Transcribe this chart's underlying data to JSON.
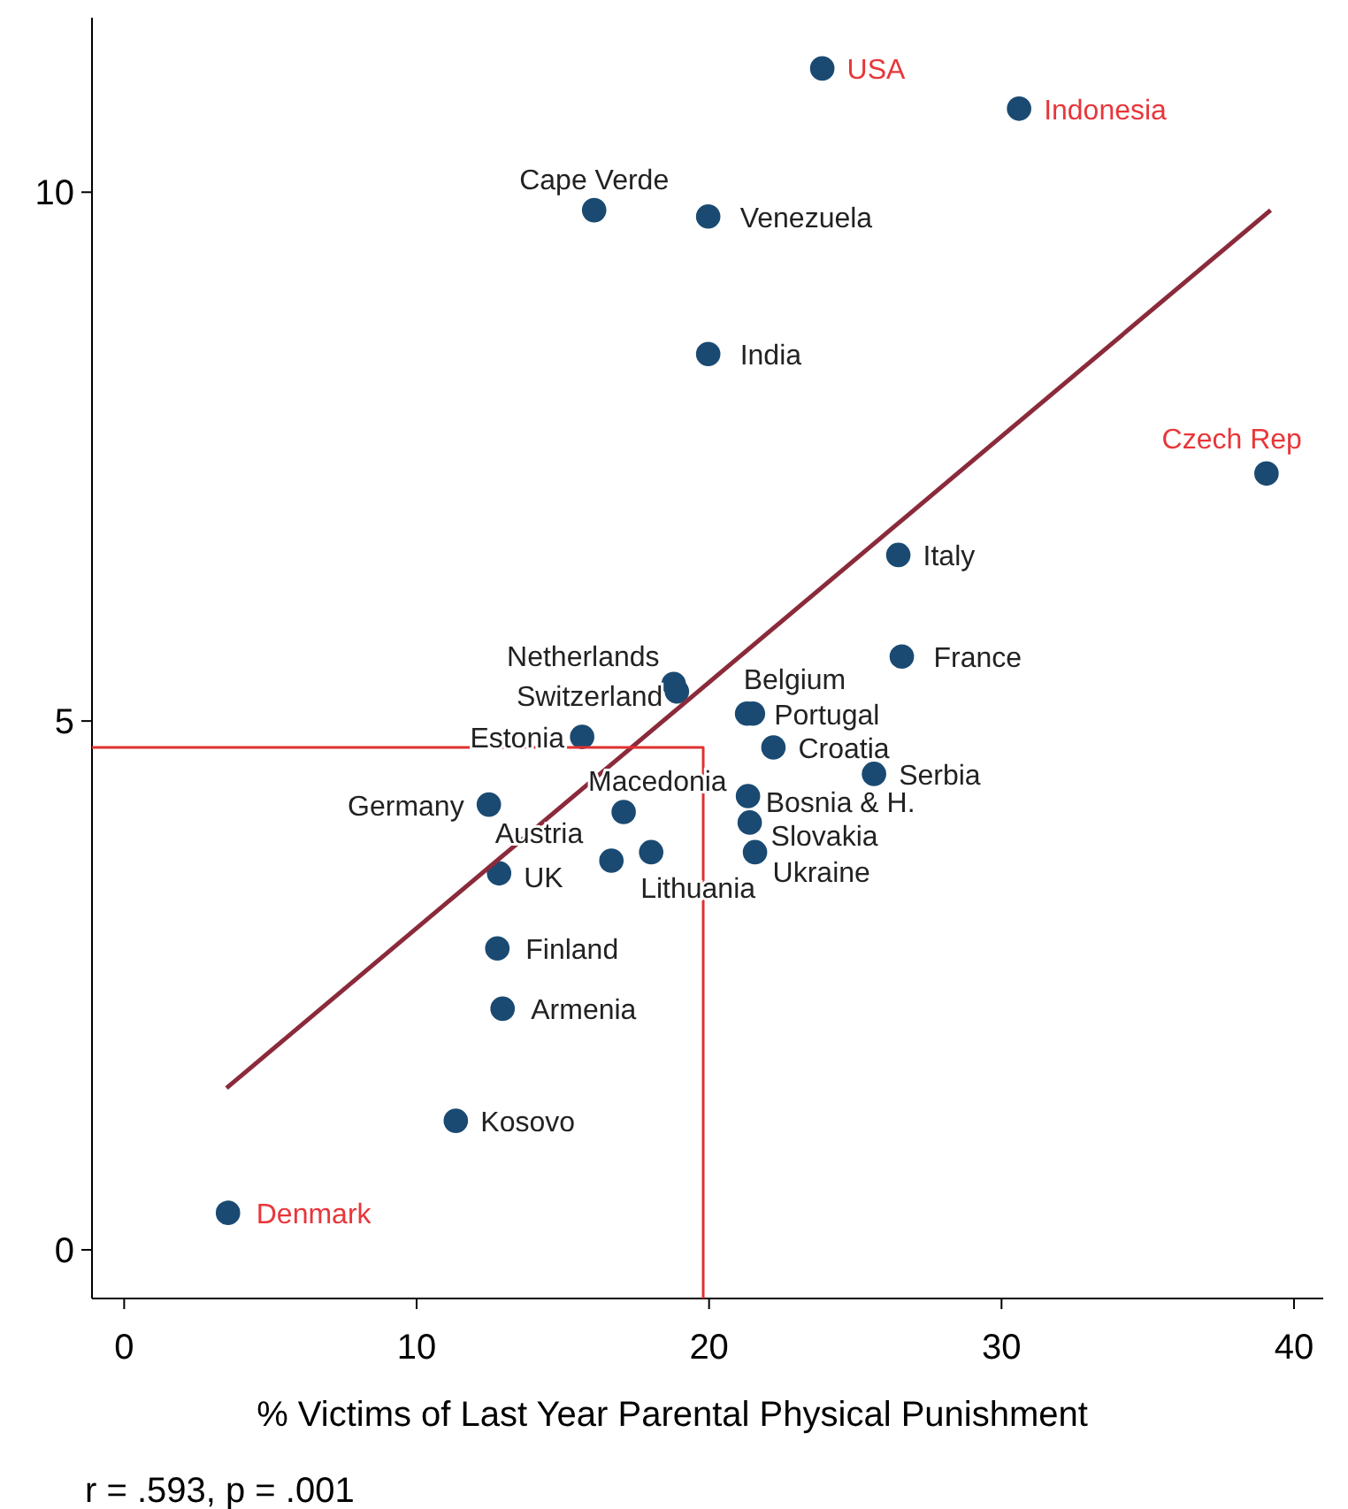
{
  "chart_data": {
    "type": "scatter",
    "xlabel": "% Victims of Last Year Parental Physical Punishment",
    "xlim": [
      -1.1,
      41
    ],
    "ylim": [
      -0.46,
      11.65
    ],
    "xticks": [
      0,
      10,
      20,
      30,
      40
    ],
    "yticks": [
      0,
      5,
      10
    ],
    "grid": false,
    "marker": "circle",
    "series": [
      {
        "color": "#1a4a72",
        "x": [
          16.07,
          19.97,
          19.97,
          26.47,
          26.59,
          18.79,
          18.9,
          21.3,
          21.5,
          15.66,
          22.2,
          25.64,
          17.08,
          21.33,
          12.47,
          21.39,
          16.66,
          18.02,
          21.57,
          12.82,
          12.76,
          12.94,
          11.34
        ],
        "values": [
          9.83,
          9.77,
          8.47,
          6.57,
          5.61,
          5.35,
          5.28,
          5.07,
          5.07,
          4.85,
          4.75,
          4.5,
          4.14,
          4.29,
          4.21,
          4.04,
          3.68,
          3.76,
          3.76,
          3.56,
          2.85,
          2.28,
          1.22
        ]
      },
      {
        "color": "#1a4a72",
        "x": [
          23.87,
          30.6,
          39.06,
          3.55
        ],
        "values": [
          11.17,
          10.79,
          7.34,
          0.35
        ]
      },
      {
        "type": "line",
        "marker": "none",
        "color": "#8b2a3a",
        "x": [
          3.5,
          39.2
        ],
        "values": [
          1.53,
          9.83
        ]
      },
      {
        "type": "line",
        "marker": "none",
        "color": "#e03030",
        "x": [
          -1.1,
          19.8,
          19.8
        ],
        "values": [
          4.75,
          4.75,
          -0.46
        ]
      }
    ],
    "annotations": [
      {
        "text": "Cape Verde",
        "x": 16.07,
        "y": 9.83
      },
      {
        "text": "Venezuela",
        "x": 19.97,
        "y": 9.77
      },
      {
        "text": "India",
        "x": 19.97,
        "y": 8.47
      },
      {
        "text": "Italy",
        "x": 26.47,
        "y": 6.57
      },
      {
        "text": "France",
        "x": 26.59,
        "y": 5.61
      },
      {
        "text": "Netherlands",
        "x": 18.79,
        "y": 5.35
      },
      {
        "text": "Switzerland",
        "x": 18.9,
        "y": 5.28
      },
      {
        "text": "Belgium",
        "x": 21.3,
        "y": 5.07
      },
      {
        "text": "Portugal",
        "x": 21.5,
        "y": 5.07
      },
      {
        "text": "Estonia",
        "x": 15.66,
        "y": 4.85
      },
      {
        "text": "Croatia",
        "x": 22.2,
        "y": 4.75
      },
      {
        "text": "Serbia",
        "x": 25.64,
        "y": 4.5
      },
      {
        "text": "Macedonia",
        "x": 17.08,
        "y": 4.14
      },
      {
        "text": "Bosnia & H.",
        "x": 21.33,
        "y": 4.29
      },
      {
        "text": "Germany",
        "x": 12.47,
        "y": 4.21
      },
      {
        "text": "Slovakia",
        "x": 21.39,
        "y": 4.04
      },
      {
        "text": "Austria",
        "x": 16.66,
        "y": 3.68
      },
      {
        "text": "Lithuania",
        "x": 18.02,
        "y": 3.76
      },
      {
        "text": "Ukraine",
        "x": 21.57,
        "y": 3.76
      },
      {
        "text": "UK",
        "x": 12.82,
        "y": 3.56
      },
      {
        "text": "Finland",
        "x": 12.76,
        "y": 2.85
      },
      {
        "text": "Armenia",
        "x": 12.94,
        "y": 2.28
      },
      {
        "text": "Kosovo",
        "x": 11.34,
        "y": 1.22
      },
      {
        "text": "USA",
        "x": 23.87,
        "y": 11.17
      },
      {
        "text": "Indonesia",
        "x": 30.6,
        "y": 10.79
      },
      {
        "text": "Czech Rep",
        "x": 39.06,
        "y": 7.34
      },
      {
        "text": "Denmark",
        "x": 3.55,
        "y": 0.35
      },
      "r = .593, p = .001"
    ]
  }
}
